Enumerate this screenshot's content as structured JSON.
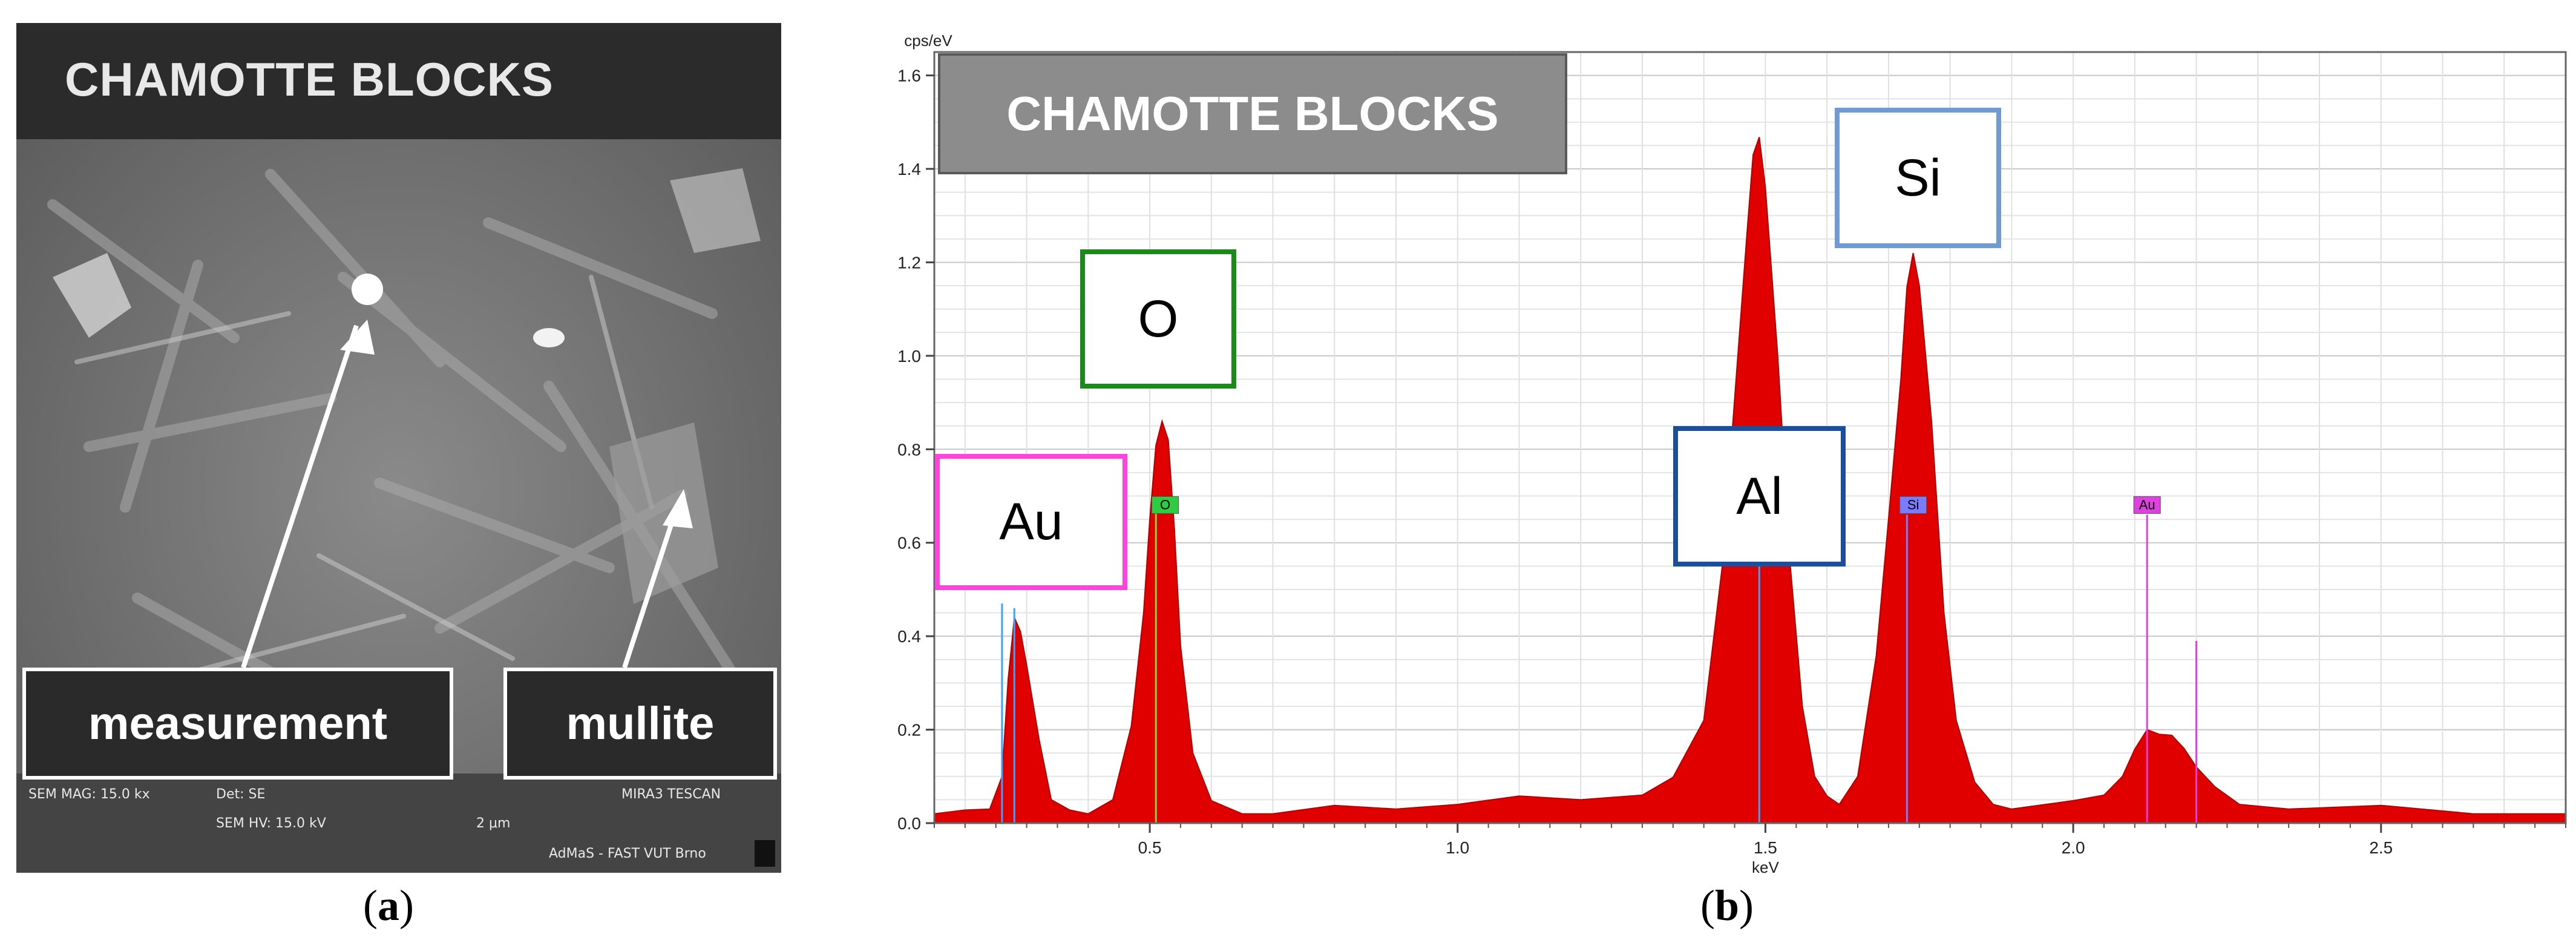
{
  "panel_a": {
    "title": "CHAMOTTE BLOCKS",
    "labels": {
      "measurement": "measurement",
      "mullite": "mullite"
    },
    "info": {
      "sem_mag": "SEM MAG: 15.0 kx",
      "det": "Det: SE",
      "sem_hv": "SEM HV: 15.0 kV",
      "scale": "2 μm",
      "instrument": "MIRA3 TESCAN",
      "lab": "AdMaS - FAST VUT Brno"
    }
  },
  "captions": {
    "a": "a",
    "b": "b",
    "open": "(",
    "close": ")"
  },
  "chart_data": {
    "type": "area",
    "title": "CHAMOTTE BLOCKS",
    "xlabel": "keV",
    "ylabel": "cps/eV",
    "xlim": [
      0.15,
      2.8
    ],
    "ylim": [
      0.0,
      1.65
    ],
    "xticks": [
      "0.5",
      "1.0",
      "1.5",
      "2.0",
      "2.5"
    ],
    "xtick_values": [
      0.5,
      1.0,
      1.5,
      2.0,
      2.5
    ],
    "yticks": [
      "0.0",
      "0.2",
      "0.4",
      "0.6",
      "0.8",
      "1.0",
      "1.2",
      "1.4",
      "1.6"
    ],
    "ytick_values": [
      0.0,
      0.2,
      0.4,
      0.6,
      0.8,
      1.0,
      1.2,
      1.4,
      1.6
    ],
    "grid": true,
    "fill_color": "#e00000",
    "series": [
      {
        "x": [
          0.15,
          0.2,
          0.24,
          0.26,
          0.27,
          0.28,
          0.29,
          0.3,
          0.32,
          0.34,
          0.37,
          0.4,
          0.44,
          0.47,
          0.49,
          0.5,
          0.51,
          0.52,
          0.53,
          0.54,
          0.55,
          0.57,
          0.6,
          0.65,
          0.7,
          0.8,
          0.9,
          1.0,
          1.1,
          1.2,
          1.3,
          1.35,
          1.4,
          1.43,
          1.45,
          1.47,
          1.48,
          1.49,
          1.5,
          1.52,
          1.54,
          1.56,
          1.58,
          1.6,
          1.62,
          1.65,
          1.68,
          1.7,
          1.72,
          1.73,
          1.74,
          1.75,
          1.77,
          1.79,
          1.81,
          1.84,
          1.87,
          1.9,
          2.0,
          2.05,
          2.08,
          2.1,
          2.12,
          2.14,
          2.16,
          2.18,
          2.2,
          2.23,
          2.27,
          2.35,
          2.5,
          2.65,
          2.8
        ],
        "y": [
          0.02,
          0.02,
          0.03,
          0.1,
          0.3,
          0.44,
          0.41,
          0.33,
          0.18,
          0.05,
          0.02,
          0.02,
          0.05,
          0.2,
          0.45,
          0.65,
          0.8,
          0.86,
          0.82,
          0.62,
          0.38,
          0.15,
          0.04,
          0.02,
          0.02,
          0.03,
          0.03,
          0.04,
          0.05,
          0.05,
          0.06,
          0.09,
          0.22,
          0.55,
          0.9,
          1.26,
          1.43,
          1.46,
          1.36,
          1.0,
          0.55,
          0.25,
          0.1,
          0.05,
          0.04,
          0.1,
          0.35,
          0.65,
          0.95,
          1.14,
          1.22,
          1.15,
          0.85,
          0.45,
          0.22,
          0.08,
          0.04,
          0.03,
          0.04,
          0.06,
          0.1,
          0.15,
          0.2,
          0.19,
          0.18,
          0.16,
          0.12,
          0.07,
          0.04,
          0.03,
          0.03,
          0.02,
          0.02
        ]
      }
    ],
    "markers": [
      {
        "name": "O",
        "x": 0.525,
        "height": 0.66,
        "color": "#2ecc40"
      },
      {
        "name": "Si",
        "x": 1.74,
        "height": 0.66,
        "color": "#7b7bff"
      },
      {
        "name": "Au",
        "x": 2.12,
        "height": 0.66,
        "color": "#e040e0"
      }
    ],
    "element_lines": [
      {
        "x": 0.26,
        "height": 0.47,
        "color": "#3aa3ff"
      },
      {
        "x": 0.28,
        "height": 0.46,
        "color": "#3aa3ff"
      },
      {
        "x": 0.51,
        "height": 0.67,
        "color": "#9acd32"
      },
      {
        "x": 1.49,
        "height": 0.57,
        "color": "#3aa3ff"
      },
      {
        "x": 1.73,
        "height": 0.66,
        "color": "#7b7bff"
      },
      {
        "x": 2.12,
        "height": 0.66,
        "color": "#e040e0"
      },
      {
        "x": 2.2,
        "height": 0.39,
        "color": "#e040e0"
      }
    ],
    "annotations": [
      {
        "text": "Au",
        "color": "#ff44dd"
      },
      {
        "text": "O",
        "color": "#1a8a1a"
      },
      {
        "text": "Al",
        "color": "#1b4f9c"
      },
      {
        "text": "Si",
        "color": "#6f9bd1"
      }
    ]
  }
}
